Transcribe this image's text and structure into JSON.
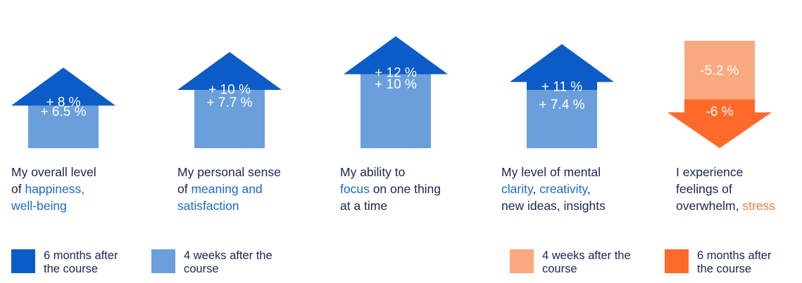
{
  "chart_data": {
    "type": "bar",
    "unit": "%",
    "series": [
      {
        "name": "6 months after the course",
        "key": "m6"
      },
      {
        "name": "4 weeks after the course",
        "key": "w4"
      }
    ],
    "categories": [
      {
        "direction": "up",
        "m6": 8,
        "w4": 6.5,
        "m6_label": "+ 8 %",
        "w4_label": "+ 6.5 %",
        "caption": [
          [
            {
              "t": "My overall level",
              "hl": ""
            }
          ],
          [
            {
              "t": "of ",
              "hl": ""
            },
            {
              "t": "happiness,",
              "hl": "blue"
            }
          ],
          [
            {
              "t": "well-being",
              "hl": "blue"
            }
          ]
        ]
      },
      {
        "direction": "up",
        "m6": 10,
        "w4": 7.7,
        "m6_label": "+ 10 %",
        "w4_label": "+ 7.7 %",
        "caption": [
          [
            {
              "t": "My personal sense",
              "hl": ""
            }
          ],
          [
            {
              "t": "of ",
              "hl": ""
            },
            {
              "t": "meaning and",
              "hl": "blue"
            }
          ],
          [
            {
              "t": "satisfaction",
              "hl": "blue"
            }
          ]
        ]
      },
      {
        "direction": "up",
        "m6": 12,
        "w4": 10,
        "m6_label": "+ 12 %",
        "w4_label": "+ 10 %",
        "caption": [
          [
            {
              "t": "My ability to",
              "hl": ""
            }
          ],
          [
            {
              "t": "focus",
              "hl": "blue"
            },
            {
              "t": " on one thing",
              "hl": ""
            }
          ],
          [
            {
              "t": "at a time",
              "hl": ""
            }
          ]
        ]
      },
      {
        "direction": "up",
        "m6": 11,
        "w4": 7.4,
        "m6_label": "+ 11 %",
        "w4_label": "+ 7.4 %",
        "caption": [
          [
            {
              "t": "My level of mental",
              "hl": ""
            }
          ],
          [
            {
              "t": "clarity",
              "hl": "blue"
            },
            {
              "t": ", ",
              "hl": ""
            },
            {
              "t": "creativity",
              "hl": "blue"
            },
            {
              "t": ",",
              "hl": ""
            }
          ],
          [
            {
              "t": "new ideas, insights",
              "hl": ""
            }
          ]
        ]
      },
      {
        "direction": "down",
        "m6": -6,
        "w4": -5.2,
        "m6_label": "-6 %",
        "w4_label": "-5.2 %",
        "caption": [
          [
            {
              "t": "I experience",
              "hl": ""
            }
          ],
          [
            {
              "t": "feelings of",
              "hl": ""
            }
          ],
          [
            {
              "t": "overwhelm, ",
              "hl": ""
            },
            {
              "t": "stress",
              "hl": "orange"
            }
          ]
        ]
      }
    ],
    "legend": [
      {
        "label": "6 months after the course",
        "color": "#0b5cc7"
      },
      {
        "label": "4 weeks after the course",
        "color": "#6a9fdc"
      },
      {
        "label": "4 weeks after the course",
        "color": "#f8a97f"
      },
      {
        "label": "6 months after the course",
        "color": "#ff6a2b"
      }
    ],
    "colors": {
      "up_m6": "#0b5cc7",
      "up_w4": "#6a9fdc",
      "down_w4": "#f8a97f",
      "down_m6": "#ff6a2b",
      "text": "#1b2550",
      "highlight_blue": "#1a6ac9",
      "highlight_orange": "#f07a3c"
    }
  }
}
